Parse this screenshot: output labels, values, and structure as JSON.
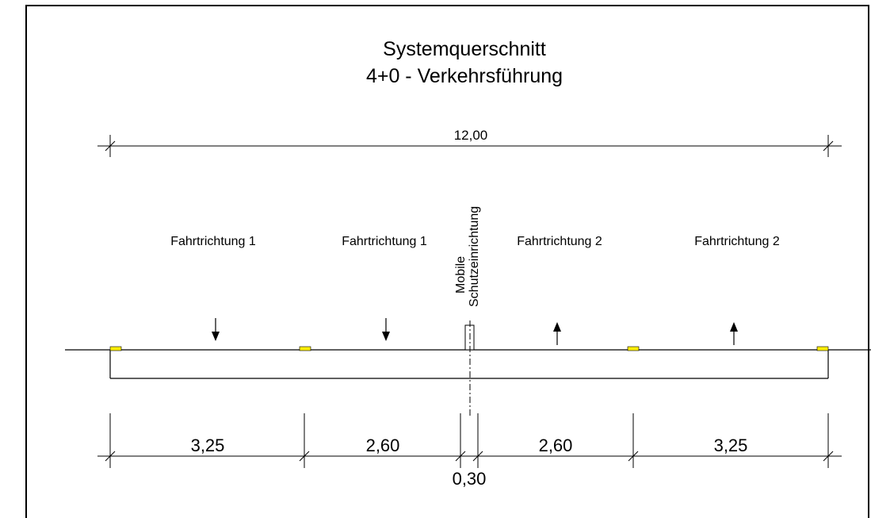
{
  "title": {
    "line1": "Systemquerschnitt",
    "line2": "4+0 - Verkehrsführung"
  },
  "overall_width": "12,00",
  "lanes": [
    {
      "label": "Fahrtrichtung 1",
      "direction": "down",
      "width": "3,25"
    },
    {
      "label": "Fahrtrichtung 1",
      "direction": "down",
      "width": "2,60"
    },
    {
      "label": "Fahrtrichtung 2",
      "direction": "up",
      "width": "2,60"
    },
    {
      "label": "Fahrtrichtung 2",
      "direction": "up",
      "width": "3,25"
    }
  ],
  "barrier": {
    "label_line1": "Mobile",
    "label_line2": "Schutzeinrichtung",
    "width": "0,30"
  },
  "colors": {
    "marker": "#ffee00",
    "line": "#000000",
    "frame": "#000000"
  }
}
